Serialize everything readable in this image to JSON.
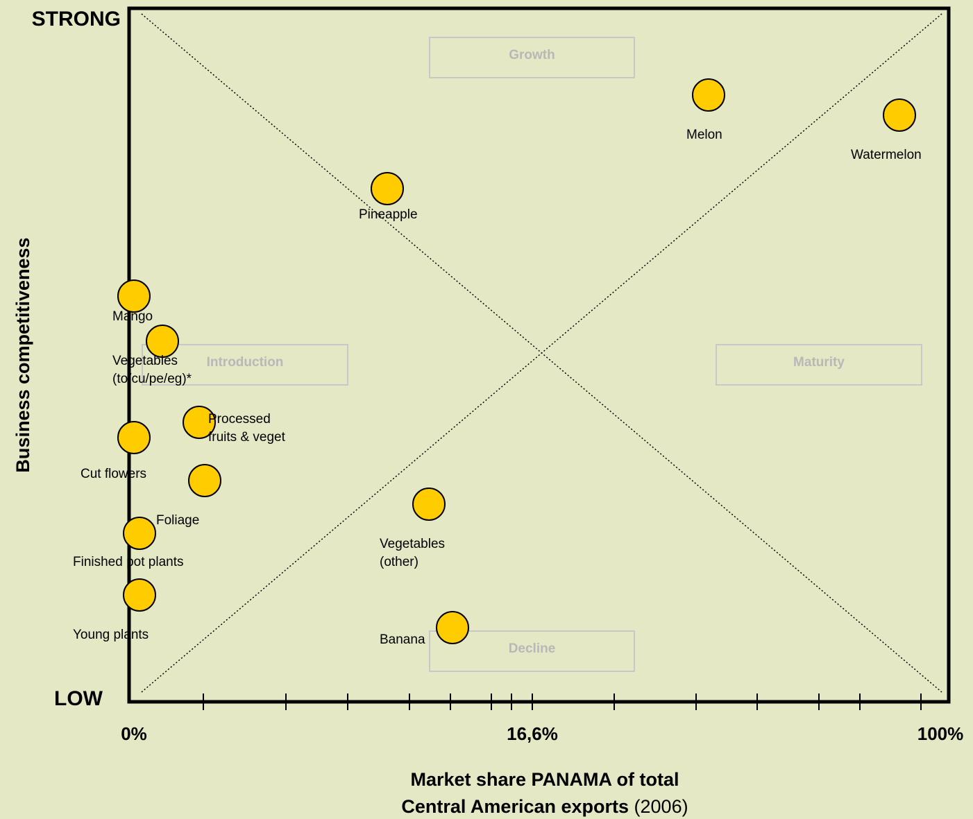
{
  "chart_data": {
    "type": "scatter",
    "y_axis": {
      "label": "Business competitiveness",
      "top_label": "STRONG",
      "bottom_label": "LOW"
    },
    "x_axis": {
      "label_line1": "Market share PANAMA of total",
      "label_line2_bold": "Central American exports",
      "label_line2_rest": " (2006)",
      "ticks_labeled": [
        "0%",
        "16,6%",
        "100%"
      ]
    },
    "stages": [
      "Growth",
      "Introduction",
      "Maturity",
      "Decline"
    ],
    "points": [
      {
        "name": "Melon",
        "lines": [
          "Melon"
        ]
      },
      {
        "name": "Watermelon",
        "lines": [
          "Watermelon"
        ]
      },
      {
        "name": "Pineapple",
        "lines": [
          "Pineapple"
        ]
      },
      {
        "name": "Mango",
        "lines": [
          "Mango"
        ]
      },
      {
        "name": "Vegetables (to/cu/pe/eg)*",
        "lines": [
          "Vegetables",
          "(to/cu/pe/eg)*"
        ]
      },
      {
        "name": "Processed fruits & veget",
        "lines": [
          "Processed",
          "fruits & veget"
        ]
      },
      {
        "name": "Cut flowers",
        "lines": [
          "Cut flowers"
        ]
      },
      {
        "name": "Foliage",
        "lines": [
          "Foliage"
        ]
      },
      {
        "name": "Finished pot plants",
        "lines": [
          "Finished pot plants"
        ]
      },
      {
        "name": "Young plants",
        "lines": [
          "Young plants"
        ]
      },
      {
        "name": "Vegetables (other)",
        "lines": [
          "Vegetables",
          "(other)"
        ]
      },
      {
        "name": "Banana",
        "lines": [
          "Banana"
        ]
      }
    ],
    "grid": false,
    "legend": "none",
    "colors": {
      "background": "#e4e8c4",
      "marker": "#ffcc00",
      "stage_text": "#b8b8b8"
    }
  }
}
